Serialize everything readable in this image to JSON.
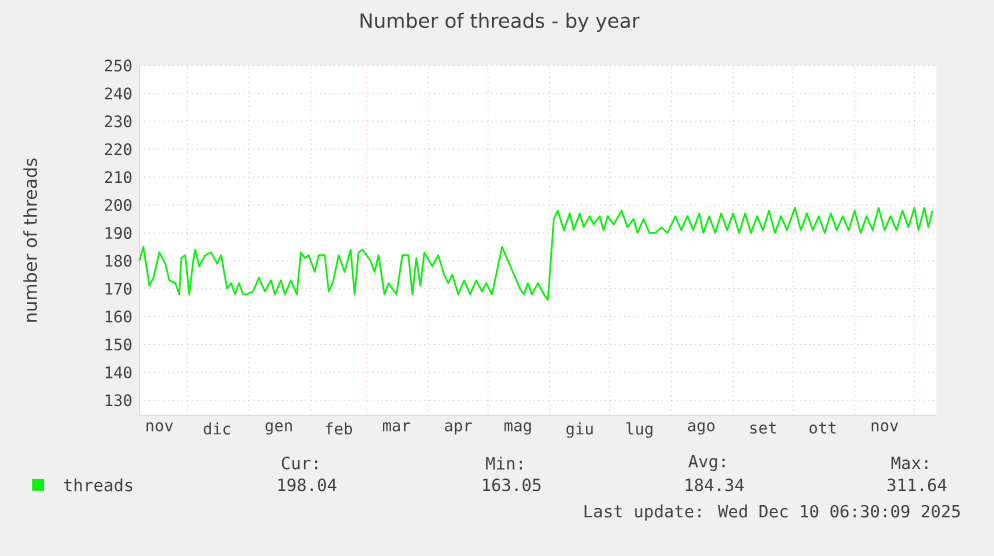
{
  "chart_data": {
    "type": "line",
    "title": "Number of threads - by year",
    "ylabel": "number of threads",
    "xlim": [
      "2024-11-07",
      "2025-12-12"
    ],
    "ylim": [
      124.6,
      250
    ],
    "yticks": [
      130,
      140,
      150,
      160,
      170,
      180,
      190,
      200,
      210,
      220,
      230,
      240,
      250
    ],
    "xticks": [
      {
        "value": "2024-12-01",
        "label": null
      },
      {
        "value": "2025-01-01",
        "label": null
      },
      {
        "value": "2025-02-01",
        "label": null
      },
      {
        "value": "2025-03-01",
        "label": null
      },
      {
        "value": "2025-04-01",
        "label": null
      },
      {
        "value": "2025-05-01",
        "label": null
      },
      {
        "value": "2025-06-01",
        "label": null
      },
      {
        "value": "2025-07-01",
        "label": null
      },
      {
        "value": "2025-08-01",
        "label": null
      },
      {
        "value": "2025-09-01",
        "label": null
      },
      {
        "value": "2025-10-01",
        "label": null
      },
      {
        "value": "2025-11-01",
        "label": null
      },
      {
        "value": "2025-12-01",
        "label": null
      },
      {
        "value": "2024-11-17",
        "label": "nov"
      },
      {
        "value": "2024-12-16",
        "label": "dic"
      },
      {
        "value": "2025-01-16",
        "label": "gen"
      },
      {
        "value": "2025-02-15",
        "label": "feb"
      },
      {
        "value": "2025-03-16",
        "label": "mar"
      },
      {
        "value": "2025-04-16",
        "label": "apr"
      },
      {
        "value": "2025-05-16",
        "label": "mag"
      },
      {
        "value": "2025-06-16",
        "label": "giu"
      },
      {
        "value": "2025-07-16",
        "label": "lug"
      },
      {
        "value": "2025-08-16",
        "label": "ago"
      },
      {
        "value": "2025-09-16",
        "label": "set"
      },
      {
        "value": "2025-10-16",
        "label": "ott"
      },
      {
        "value": "2025-11-16",
        "label": "nov"
      }
    ],
    "grid": true,
    "legend": "bottom",
    "series": [
      {
        "name": "threads",
        "color": "#11ee11",
        "x": [
          "2024-11-07",
          "2024-11-09",
          "2024-11-12",
          "2024-11-14",
          "2024-11-17",
          "2024-11-20",
          "2024-11-22",
          "2024-11-25",
          "2024-11-27",
          "2024-11-28",
          "2024-11-30",
          "2024-12-02",
          "2024-12-04",
          "2024-12-05",
          "2024-12-07",
          "2024-12-10",
          "2024-12-13",
          "2024-12-16",
          "2024-12-18",
          "2024-12-21",
          "2024-12-23",
          "2024-12-25",
          "2024-12-27",
          "2024-12-29",
          "2024-12-31",
          "2025-01-03",
          "2025-01-06",
          "2025-01-09",
          "2025-01-12",
          "2025-01-14",
          "2025-01-17",
          "2025-01-19",
          "2025-01-22",
          "2025-01-25",
          "2025-01-27",
          "2025-01-29",
          "2025-01-31",
          "2025-02-03",
          "2025-02-05",
          "2025-02-08",
          "2025-02-10",
          "2025-02-12",
          "2025-02-15",
          "2025-02-18",
          "2025-02-21",
          "2025-02-23",
          "2025-02-25",
          "2025-02-27",
          "2025-03-03",
          "2025-03-05",
          "2025-03-07",
          "2025-03-10",
          "2025-03-12",
          "2025-03-16",
          "2025-03-19",
          "2025-03-22",
          "2025-03-24",
          "2025-03-26",
          "2025-03-28",
          "2025-03-30",
          "2025-04-03",
          "2025-04-06",
          "2025-04-09",
          "2025-04-11",
          "2025-04-13",
          "2025-04-16",
          "2025-04-19",
          "2025-04-22",
          "2025-04-25",
          "2025-04-28",
          "2025-04-30",
          "2025-05-03",
          "2025-05-08",
          "2025-05-14",
          "2025-05-17",
          "2025-05-19",
          "2025-05-21",
          "2025-05-23",
          "2025-05-26",
          "2025-05-29",
          "2025-05-31",
          "2025-06-03",
          "2025-06-05",
          "2025-06-08",
          "2025-06-11",
          "2025-06-13",
          "2025-06-16",
          "2025-06-18",
          "2025-06-21",
          "2025-06-23",
          "2025-06-26",
          "2025-06-28",
          "2025-06-30",
          "2025-07-03",
          "2025-07-07",
          "2025-07-10",
          "2025-07-13",
          "2025-07-15",
          "2025-07-18",
          "2025-07-21",
          "2025-07-24",
          "2025-07-27",
          "2025-07-30",
          "2025-08-03",
          "2025-08-06",
          "2025-08-09",
          "2025-08-12",
          "2025-08-15",
          "2025-08-17",
          "2025-08-20",
          "2025-08-23",
          "2025-08-26",
          "2025-08-29",
          "2025-09-01",
          "2025-09-04",
          "2025-09-07",
          "2025-09-10",
          "2025-09-13",
          "2025-09-16",
          "2025-09-19",
          "2025-09-22",
          "2025-09-25",
          "2025-09-28",
          "2025-10-02",
          "2025-10-05",
          "2025-10-08",
          "2025-10-11",
          "2025-10-14",
          "2025-10-17",
          "2025-10-20",
          "2025-10-23",
          "2025-10-26",
          "2025-10-29",
          "2025-11-01",
          "2025-11-04",
          "2025-11-07",
          "2025-11-10",
          "2025-11-13",
          "2025-11-16",
          "2025-11-19",
          "2025-11-22",
          "2025-11-25",
          "2025-11-28",
          "2025-12-01",
          "2025-12-03",
          "2025-12-06",
          "2025-12-08",
          "2025-12-10"
        ],
        "values": [
          180,
          185,
          171,
          174,
          183,
          179,
          173,
          172,
          168,
          181,
          182,
          168,
          180,
          184,
          178,
          182,
          183,
          179,
          182,
          170,
          172,
          168,
          172,
          168,
          168,
          169,
          174,
          169,
          173,
          168,
          173,
          168,
          173,
          168,
          183,
          181,
          182,
          176,
          182,
          182,
          169,
          172,
          182,
          176,
          184,
          168,
          183,
          184,
          180,
          176,
          182,
          168,
          172,
          168,
          182,
          182,
          168,
          181,
          171,
          183,
          178,
          182,
          175,
          172,
          175,
          168,
          173,
          168,
          173,
          169,
          172,
          168,
          185,
          175,
          170,
          168,
          172,
          168,
          172,
          168,
          166,
          195,
          198,
          191,
          197,
          191,
          197,
          192,
          196,
          193,
          196,
          191,
          196,
          193,
          198,
          192,
          195,
          190,
          195,
          190,
          190,
          192,
          190,
          196,
          191,
          196,
          191,
          197,
          190,
          196,
          190,
          197,
          191,
          197,
          190,
          197,
          190,
          196,
          191,
          198,
          190,
          196,
          191,
          199,
          191,
          197,
          191,
          196,
          190,
          197,
          191,
          196,
          191,
          198,
          190,
          196,
          191,
          199,
          191,
          196,
          191,
          198,
          192,
          199,
          191,
          199,
          192,
          198
        ]
      }
    ],
    "annotations": [
      "Cur:",
      "198.04",
      "Min:",
      "163.05",
      "Avg:",
      "184.34",
      "Max:",
      "311.64",
      "Last update: Wed Dec 10 06:30:09 2025"
    ]
  }
}
